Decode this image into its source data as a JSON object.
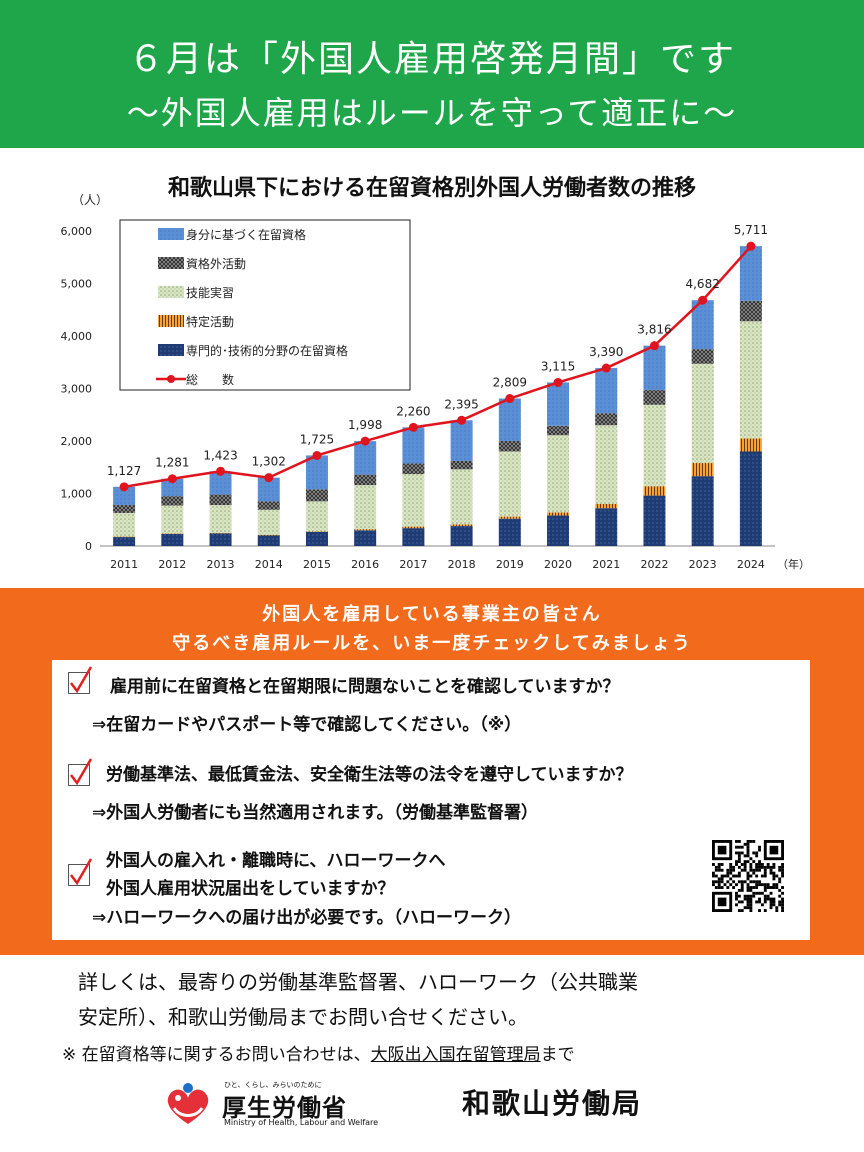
{
  "header": {
    "title": "６月は「外国人雇用啓発月間」です",
    "subtitle": "～外国人雇用はルールを守って適正に～"
  },
  "chart_title": "和歌山県下における在留資格別外国人労働者数の推移",
  "chart_data": {
    "type": "bar",
    "title": "和歌山県下における在留資格別外国人労働者数の推移",
    "ylabel": "（人）",
    "xunit": "（年）",
    "ylim": [
      0,
      6000
    ],
    "yticks": [
      "0",
      "1,000",
      "2,000",
      "3,000",
      "4,000",
      "5,000",
      "6,000"
    ],
    "categories": [
      "2011",
      "2012",
      "2013",
      "2014",
      "2015",
      "2016",
      "2017",
      "2018",
      "2019",
      "2020",
      "2021",
      "2022",
      "2023",
      "2024"
    ],
    "series": [
      {
        "name": "専門的･技術的分野の在留資格",
        "values": [
          170,
          230,
          240,
          200,
          270,
          300,
          340,
          380,
          520,
          580,
          720,
          960,
          1330,
          1800
        ]
      },
      {
        "name": "特定活動",
        "values": [
          10,
          10,
          10,
          10,
          10,
          20,
          30,
          30,
          40,
          60,
          80,
          180,
          250,
          250
        ]
      },
      {
        "name": "技能実習",
        "values": [
          450,
          530,
          530,
          480,
          570,
          840,
          1000,
          1050,
          1240,
          1470,
          1500,
          1550,
          1890,
          2230
        ]
      },
      {
        "name": "資格外活動",
        "values": [
          150,
          180,
          200,
          160,
          230,
          200,
          200,
          160,
          200,
          180,
          230,
          280,
          280,
          390
        ]
      },
      {
        "name": "身分に基づく在留資格",
        "values": [
          347,
          331,
          443,
          452,
          645,
          638,
          690,
          775,
          809,
          825,
          860,
          846,
          932,
          1041
        ]
      }
    ],
    "total": {
      "name": "総　　数",
      "values": [
        1127,
        1281,
        1423,
        1302,
        1725,
        1998,
        2260,
        2395,
        2809,
        3115,
        3390,
        3816,
        4682,
        5711
      ],
      "labels": [
        "1,127",
        "1,281",
        "1,423",
        "1,302",
        "1,725",
        "1,998",
        "2,260",
        "2,395",
        "2,809",
        "3,115",
        "3,390",
        "3,816",
        "4,682",
        "5,711"
      ]
    },
    "legend_placement": "top-left",
    "colors": {
      "専門的･技術的分野の在留資格": "#1f3b73",
      "特定活動": "#e08a1e",
      "技能実習": "#cfdcb0",
      "資格外活動": "#3c3c3c",
      "身分に基づく在留資格": "#5b8fd6",
      "総　　数": "#e0141e"
    }
  },
  "banner": {
    "line1": "外国人を雇用している事業主の皆さん",
    "line2": "守るべき雇用ルールを、いま一度チェックしてみましょう"
  },
  "checks": {
    "q1": "雇用前に在留資格と在留期限に問題ないことを確認していますか？",
    "a1": "⇒在留カードやパスポート等で確認してください。（※）",
    "q2": "労働基準法、最低賃金法、安全衛生法等の法令を遵守していますか？",
    "a2": "⇒外国人労働者にも当然適用されます。（労働基準監督署）",
    "q3a": "外国人の雇入れ・離職時に、ハローワークへ",
    "q3b": "外国人雇用状況届出をしていますか？",
    "a3": "⇒ハローワークへの届け出が必要です。（ハローワーク）"
  },
  "footer": {
    "line1": "詳しくは、最寄りの労働基準監督署、ハローワーク（公共職業",
    "line2": "安定所）、和歌山労働局までお問い合せください。",
    "note_prefix": "※ 在留資格等に関するお問い合わせは、",
    "note_link": "大阪出入国在留管理局",
    "note_suffix": "まで",
    "mhlw_small": "ひと、くらし、みらいのために",
    "mhlw_name": "厚生労働省",
    "mhlw_en": "Ministry of Health, Labour and Welfare",
    "bureau": "和歌山労働局"
  }
}
